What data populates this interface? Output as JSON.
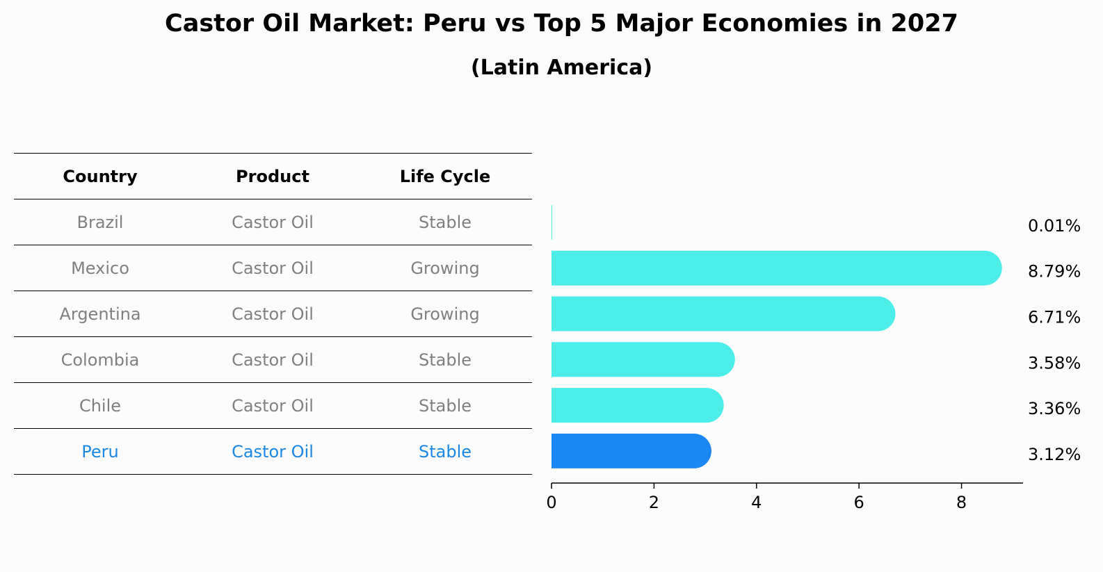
{
  "title": "Castor Oil Market: Peru vs Top 5 Major Economies in 2027",
  "subtitle": "(Latin America)",
  "table": {
    "headers": [
      "Country",
      "Product",
      "Life Cycle"
    ],
    "rows": [
      [
        "Brazil",
        "Castor Oil",
        "Stable"
      ],
      [
        "Mexico",
        "Castor Oil",
        "Growing"
      ],
      [
        "Argentina",
        "Castor Oil",
        "Growing"
      ],
      [
        "Colombia",
        "Castor Oil",
        "Stable"
      ],
      [
        "Chile",
        "Castor Oil",
        "Stable"
      ],
      [
        "Peru",
        "Castor Oil",
        "Stable"
      ]
    ]
  },
  "chart_data": {
    "type": "bar",
    "orientation": "horizontal",
    "categories": [
      "Brazil",
      "Mexico",
      "Argentina",
      "Colombia",
      "Chile",
      "Peru"
    ],
    "values": [
      0.01,
      8.79,
      6.71,
      3.58,
      3.36,
      3.12
    ],
    "value_labels": [
      "0.01%",
      "8.79%",
      "6.71%",
      "3.58%",
      "3.36%",
      "3.12%"
    ],
    "highlight": "Peru",
    "xlim": [
      0,
      9.2
    ],
    "xticks": [
      0,
      2,
      4,
      6,
      8
    ],
    "xlabel": "",
    "ylabel": "",
    "grid": false,
    "colors": {
      "default": "#4deeea",
      "highlight": "#1a87f5"
    }
  }
}
